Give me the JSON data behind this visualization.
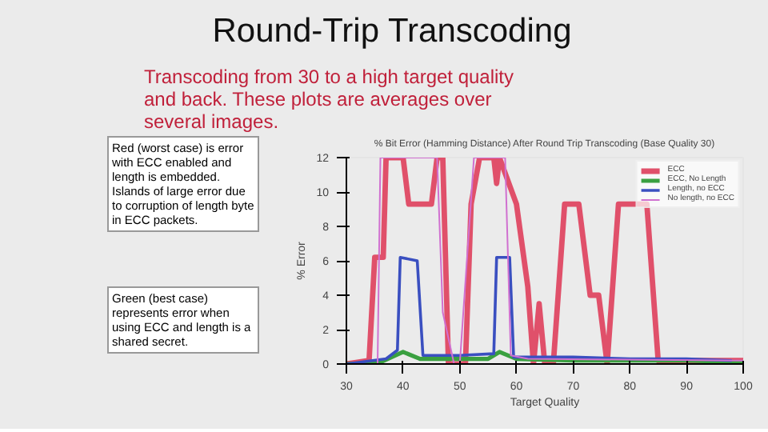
{
  "chart_data": {
    "type": "line",
    "title": "% Bit Error (Hamming Distance) After Round Trip Transcoding (Base Quality 30)",
    "subtitle": "Round-Trip Transcoding",
    "xlabel": "Target Quality",
    "ylabel": "% Error",
    "annotations": [
      "Transcoding from 30 to a high target quality and back.  These plots are averages over several images.",
      "Red (worst case) is error with ECC enabled and length is embedded. Islands of large error due to corruption of length byte in ECC packets.",
      "Green (best case) represents error when using ECC and length is a shared secret."
    ],
    "series": [
      {
        "name": "ECC",
        "color": "#e0506a",
        "x": [
          30,
          34,
          35,
          36.5,
          37,
          40,
          41,
          45,
          46,
          47,
          48,
          51,
          52,
          53.5,
          56,
          56.5,
          57,
          60,
          62,
          63,
          64,
          65,
          66.5,
          68.5,
          71,
          73,
          74.5,
          76,
          78,
          83,
          85,
          100
        ],
        "values": [
          0,
          0.2,
          6.2,
          6.2,
          12,
          12,
          9.3,
          9.3,
          12,
          12,
          0,
          0,
          9.3,
          12,
          12,
          10.5,
          12,
          9.3,
          4.5,
          0,
          3.5,
          0,
          0,
          9.3,
          9.3,
          4,
          4,
          0,
          9.3,
          9.3,
          0.2,
          0.2
        ]
      },
      {
        "name": "ECC, No Length",
        "color": "#3aa040",
        "x": [
          30,
          36,
          40,
          43,
          55,
          57,
          60,
          70,
          80,
          90,
          100
        ],
        "values": [
          0,
          0.1,
          0.7,
          0.3,
          0.3,
          0.7,
          0.3,
          0.2,
          0.2,
          0.2,
          0.1
        ]
      },
      {
        "name": "Length, no ECC",
        "color": "#3a4fc0",
        "x": [
          30,
          37,
          39,
          39.5,
          42.5,
          43.5,
          50,
          56,
          56.5,
          58.8,
          59.5,
          70,
          80,
          90,
          98
        ],
        "values": [
          0,
          0.3,
          0.8,
          6.2,
          6,
          0.5,
          0.5,
          0.6,
          6.2,
          6.2,
          0.4,
          0.4,
          0.3,
          0.3,
          0.2
        ]
      },
      {
        "name": "No length, no ECC",
        "color": "#d070d0",
        "x": [
          30,
          35.5,
          36,
          46,
          47,
          49,
          50,
          52.5,
          58,
          59,
          62,
          100
        ],
        "values": [
          0,
          0,
          12,
          12,
          3,
          0,
          0,
          12,
          12,
          0.5,
          0.3,
          0.2
        ]
      }
    ],
    "xlim": [
      30,
      100
    ],
    "ylim": [
      0,
      12
    ],
    "xticks": [
      30,
      40,
      50,
      60,
      70,
      80,
      90,
      100
    ],
    "yticks": [
      0,
      2,
      4,
      6,
      8,
      10,
      12
    ],
    "legend": "top right",
    "grid": false,
    "marker": "none",
    "line_style": "solid"
  }
}
